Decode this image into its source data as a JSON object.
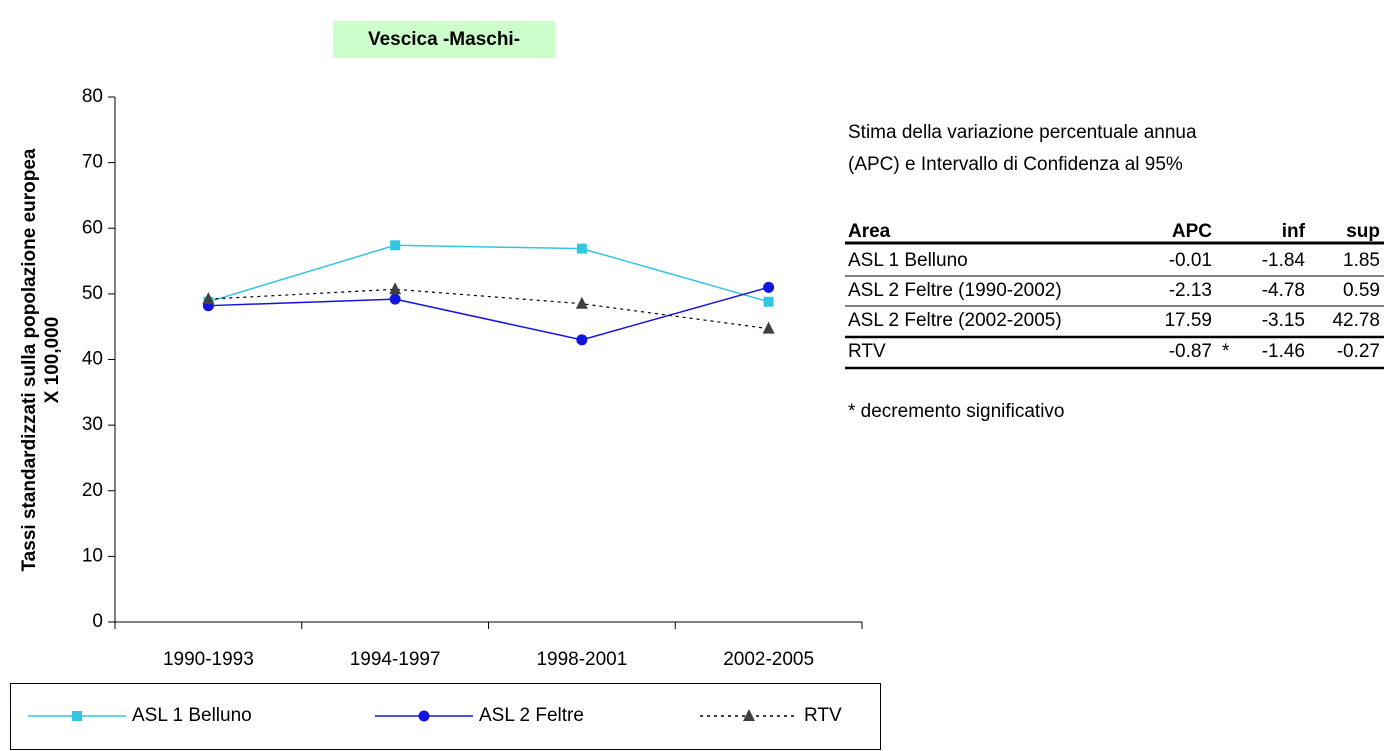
{
  "chart_data": {
    "type": "line",
    "title": "Vescica -Maschi-",
    "ylabel": [
      "Tassi standardizzati sulla popolazione europea",
      "X 100,000"
    ],
    "categories": [
      "1990-1993",
      "1994-1997",
      "1998-2001",
      "2002-2005"
    ],
    "series": [
      {
        "name": "ASL 1 Belluno",
        "color": "#33c6e0",
        "marker": "square",
        "dash": "solid",
        "values": [
          48.8,
          57.4,
          56.9,
          48.8
        ]
      },
      {
        "name": "ASL 2 Feltre",
        "color": "#1414e0",
        "marker": "circle",
        "dash": "solid",
        "values": [
          48.2,
          49.2,
          43.0,
          51.0
        ]
      },
      {
        "name": "RTV",
        "color": "#000000",
        "marker": "triangle",
        "dash": "dashed",
        "values": [
          49.2,
          50.7,
          48.5,
          44.7
        ]
      }
    ],
    "ylim": [
      0,
      80
    ],
    "yticks": [
      0,
      10,
      20,
      30,
      40,
      50,
      60,
      70,
      80
    ],
    "grid": false,
    "legend": "bottom"
  },
  "table": {
    "caption": [
      "Stima della variazione percentuale annua",
      "(APC) e Intervallo di Confidenza al 95%"
    ],
    "header": [
      "Area",
      "APC",
      null,
      "inf",
      "sup"
    ],
    "rows": [
      [
        "ASL 1 Belluno",
        "-0.01",
        null,
        "-1.84",
        "1.85"
      ],
      [
        "ASL 2 Feltre (1990-2002)",
        "-2.13",
        null,
        "-4.78",
        "0.59"
      ],
      [
        "ASL 2 Feltre (2002-2005)",
        "17.59",
        null,
        "-3.15",
        "42.78"
      ],
      [
        "RTV",
        "-0.87",
        "*",
        "-1.46",
        "-0.27"
      ]
    ],
    "note": "* decremento significativo"
  }
}
